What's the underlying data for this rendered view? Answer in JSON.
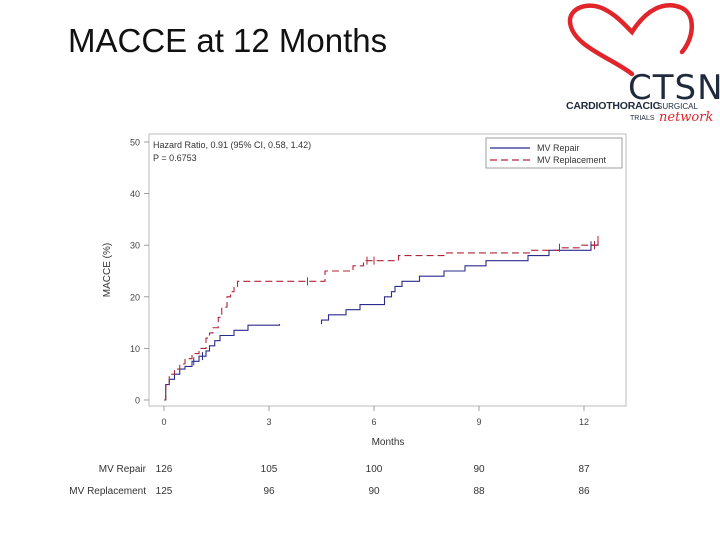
{
  "slide": {
    "title": "MACCE at 12 Months"
  },
  "logo": {
    "name": "CTSN",
    "line1_bold": "CARDIOTHORACIC",
    "line1_small": "SURGICAL",
    "line2_small": "TRIALS",
    "line2_script": "network",
    "heart_color": "#e0252b"
  },
  "chart_data": {
    "type": "line",
    "title": "",
    "xlabel": "Months",
    "ylabel": "MACCE (%)",
    "xlim": [
      0,
      12.5
    ],
    "ylim": [
      0,
      50
    ],
    "x_ticks": [
      "0",
      "3",
      "6",
      "9",
      "12"
    ],
    "y_ticks": [
      "0",
      "10",
      "20",
      "30",
      "40",
      "50"
    ],
    "annotations": [
      "Hazard Ratio, 0.91 (95% CI, 0.58, 1.42)",
      "P = 0.6753"
    ],
    "legend": {
      "position": "top-right"
    },
    "series": [
      {
        "name": "MV Repair",
        "color": "#2b2b8c",
        "style": "solid",
        "steps": [
          [
            0,
            0
          ],
          [
            0.05,
            3
          ],
          [
            0.15,
            4
          ],
          [
            0.3,
            5
          ],
          [
            0.45,
            6
          ],
          [
            0.6,
            6.5
          ],
          [
            0.8,
            7.5
          ],
          [
            1.0,
            8.5
          ],
          [
            1.2,
            9.5
          ],
          [
            1.3,
            10.5
          ],
          [
            1.45,
            11.5
          ],
          [
            1.6,
            12.5
          ],
          [
            2.0,
            13.5
          ],
          [
            2.4,
            14.5
          ],
          [
            3.3,
            14.7
          ],
          [
            4.5,
            15.5
          ],
          [
            4.7,
            16.5
          ],
          [
            5.2,
            17.5
          ],
          [
            5.6,
            18.5
          ],
          [
            6.3,
            20
          ],
          [
            6.5,
            21
          ],
          [
            6.6,
            22
          ],
          [
            6.8,
            23
          ],
          [
            7.3,
            24
          ],
          [
            8.0,
            25
          ],
          [
            8.6,
            26
          ],
          [
            9.2,
            27
          ],
          [
            10.4,
            28
          ],
          [
            11.0,
            29
          ],
          [
            12.2,
            30
          ],
          [
            12.4,
            31
          ]
        ],
        "censor_x": [
          0.3,
          0.85,
          1.1,
          12.2,
          12.3
        ],
        "gap_x": [
          3.3,
          4.5
        ]
      },
      {
        "name": "MV Replacement",
        "color": "#b1243a",
        "style": "dashed",
        "steps": [
          [
            0,
            0
          ],
          [
            0.05,
            3
          ],
          [
            0.15,
            5
          ],
          [
            0.3,
            6
          ],
          [
            0.45,
            7
          ],
          [
            0.6,
            8
          ],
          [
            0.8,
            9
          ],
          [
            1.0,
            10
          ],
          [
            1.2,
            12
          ],
          [
            1.3,
            13
          ],
          [
            1.4,
            14
          ],
          [
            1.55,
            16
          ],
          [
            1.65,
            18
          ],
          [
            1.8,
            20
          ],
          [
            1.9,
            21
          ],
          [
            2.0,
            22
          ],
          [
            2.1,
            23
          ],
          [
            4.2,
            23
          ],
          [
            4.6,
            25
          ],
          [
            5.4,
            26
          ],
          [
            5.7,
            27
          ],
          [
            6.7,
            28
          ],
          [
            8.0,
            28.5
          ],
          [
            10.5,
            29
          ],
          [
            11.3,
            29.5
          ],
          [
            11.9,
            30
          ],
          [
            12.4,
            31
          ]
        ],
        "censor_x": [
          4.1,
          5.8,
          6.0,
          11.3,
          12.3,
          12.4
        ],
        "gap_x": []
      }
    ],
    "risk_table": [
      {
        "label": "MV Repair",
        "counts": [
          "126",
          "105",
          "100",
          "90",
          "87"
        ]
      },
      {
        "label": "MV Replacement",
        "counts": [
          "125",
          "96",
          "90",
          "88",
          "86"
        ]
      }
    ]
  }
}
